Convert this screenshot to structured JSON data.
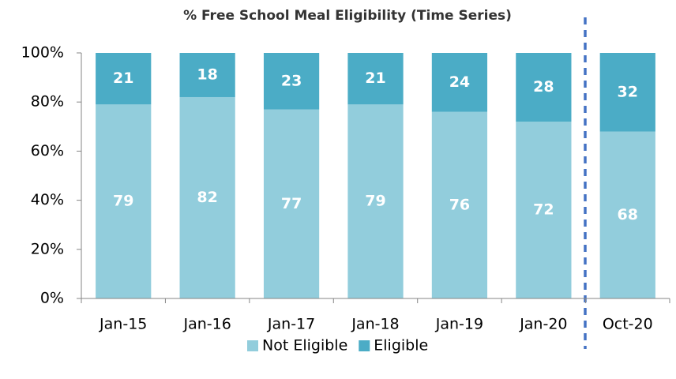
{
  "chart_data": {
    "type": "stacked_bar",
    "title": "% Free School Meal Eligibility (Time Series)",
    "categories": [
      "Jan-15",
      "Jan-16",
      "Jan-17",
      "Jan-18",
      "Jan-19",
      "Jan-20",
      "Oct-20"
    ],
    "series": [
      {
        "name": "Not Eligible",
        "color": "#92cddc",
        "values": [
          79,
          82,
          77,
          79,
          76,
          72,
          68
        ]
      },
      {
        "name": "Eligible",
        "color": "#4bacc6",
        "values": [
          21,
          18,
          23,
          21,
          24,
          28,
          32
        ]
      }
    ],
    "ylim": [
      0,
      100
    ],
    "yticks": [
      {
        "value": 0,
        "label": "0%"
      },
      {
        "value": 20,
        "label": "20%"
      },
      {
        "value": 40,
        "label": "40%"
      },
      {
        "value": 60,
        "label": "60%"
      },
      {
        "value": 80,
        "label": "80%"
      },
      {
        "value": 100,
        "label": "100%"
      }
    ],
    "legend": "bottom"
  }
}
